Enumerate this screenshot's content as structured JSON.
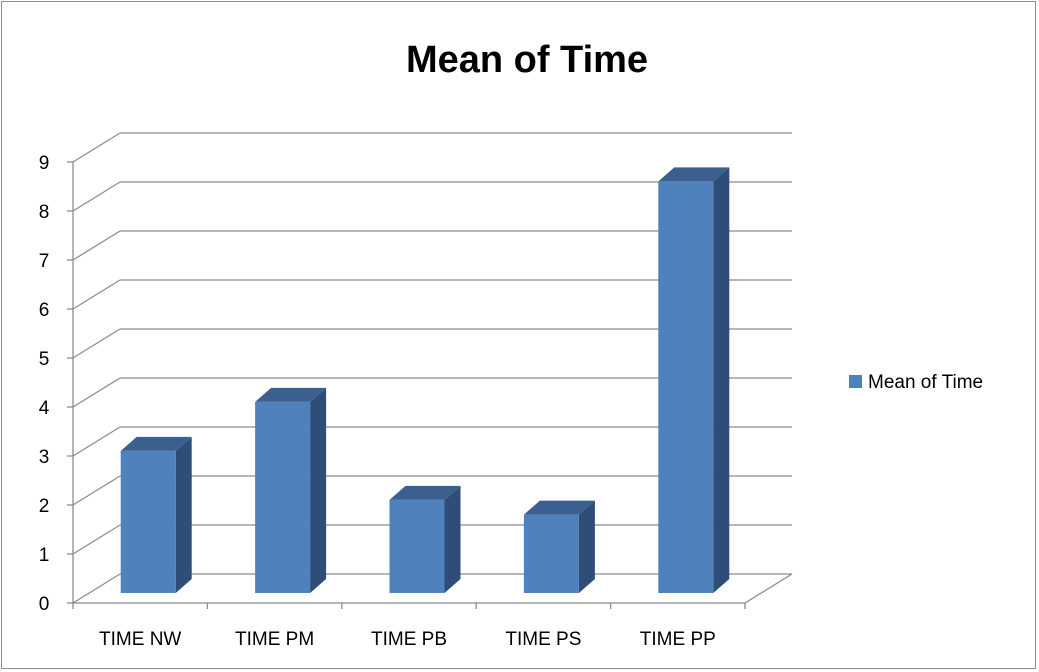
{
  "chart_data": {
    "type": "bar",
    "title": "Mean of Time",
    "categories": [
      "TIME NW",
      "TIME PM",
      "TIME PB",
      "TIME PS",
      "TIME PP"
    ],
    "series": [
      {
        "name": "Mean of Time",
        "values": [
          2.9,
          3.9,
          1.9,
          1.6,
          8.4
        ]
      }
    ],
    "ylim": [
      0,
      9
    ],
    "yticks": [
      "0",
      "1",
      "2",
      "3",
      "4",
      "5",
      "6",
      "7",
      "8",
      "9"
    ],
    "grid": true,
    "legend": "right",
    "three_d": true,
    "colors": {
      "front": "#4f81bd",
      "side": "#2e4e78",
      "top": "#3b5f8f",
      "grid": "#8c8c8c"
    }
  }
}
